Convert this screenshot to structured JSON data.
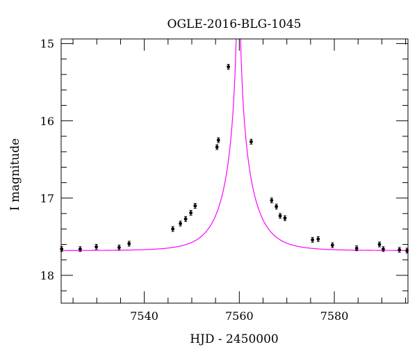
{
  "chart_data": {
    "type": "scatter",
    "title": "OGLE-2016-BLG-1045",
    "xlabel": "HJD - 2450000",
    "ylabel": "I magnitude",
    "xlim": [
      7522.5,
      7595.5
    ],
    "ylim": [
      18.36,
      14.94
    ],
    "y_inverted": true,
    "grid": false,
    "x_major_ticks": [
      7540,
      7560,
      7580
    ],
    "y_major_ticks": [
      15,
      16,
      17,
      18
    ],
    "model_color": "#ff00ff",
    "point_color": "#000000",
    "model": {
      "name": "",
      "t0": 7559.8,
      "tE": 6.0,
      "u0": 0.011,
      "baseline_mag": 17.68,
      "fs_fraction": 0.97
    },
    "series": [
      {
        "name": "",
        "x": [
          7522.6,
          7526.5,
          7529.9,
          7534.7,
          7536.8,
          7546.0,
          7547.6,
          7548.7,
          7549.8,
          7550.7,
          7555.3,
          7555.6,
          7557.7,
          7562.5,
          7566.8,
          7567.8,
          7568.6,
          7569.6,
          7575.4,
          7576.6,
          7579.6,
          7584.7,
          7589.5,
          7590.3,
          7593.7,
          7595.3
        ],
        "y": [
          17.66,
          17.66,
          17.63,
          17.64,
          17.59,
          17.4,
          17.33,
          17.27,
          17.19,
          17.1,
          16.34,
          16.25,
          15.3,
          16.27,
          17.03,
          17.11,
          17.23,
          17.26,
          17.54,
          17.53,
          17.61,
          17.65,
          17.6,
          17.66,
          17.67,
          17.68
        ]
      }
    ]
  }
}
